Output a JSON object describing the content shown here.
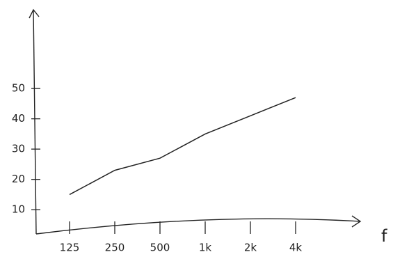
{
  "chart_data": {
    "type": "line",
    "x_label": "f",
    "categories": [
      "125",
      "250",
      "500",
      "1k",
      "2k",
      "4k"
    ],
    "values": [
      15,
      23,
      27,
      35,
      41,
      47
    ],
    "color": "#222222",
    "ylim": [
      2,
      76
    ],
    "yticks": [
      10,
      20,
      30,
      40,
      50
    ]
  }
}
